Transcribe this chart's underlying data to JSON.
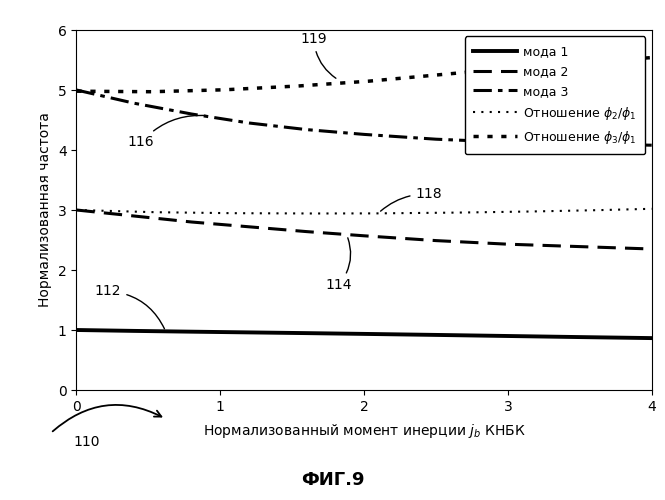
{
  "title": "",
  "xlabel": "Нормализованный момент инерции $j_b$ КНБК",
  "ylabel": "Нормализованная частота",
  "xlim": [
    0,
    4
  ],
  "ylim": [
    0,
    6
  ],
  "xticks": [
    0,
    1,
    2,
    3,
    4
  ],
  "yticks": [
    0,
    1,
    2,
    3,
    4,
    5,
    6
  ],
  "fig_caption": "ФИГ.9",
  "legend_entries": [
    "мода 1",
    "мода 2",
    "мода 3",
    "Отношение $\\phi_2/\\phi_1$",
    "Отношение $\\phi_3/\\phi_1$"
  ],
  "background_color": "#ffffff",
  "series": {
    "mode1": {
      "x": [
        0,
        0.4,
        0.8,
        1.2,
        1.6,
        2.0,
        2.5,
        3.0,
        3.5,
        4.0
      ],
      "y": [
        1.0,
        0.985,
        0.972,
        0.96,
        0.948,
        0.935,
        0.918,
        0.9,
        0.882,
        0.865
      ],
      "linestyle": "-",
      "linewidth": 2.8,
      "color": "black"
    },
    "mode2": {
      "x": [
        0,
        0.4,
        0.8,
        1.2,
        1.6,
        2.0,
        2.5,
        3.0,
        3.5,
        4.0
      ],
      "y": [
        3.0,
        2.9,
        2.8,
        2.72,
        2.64,
        2.57,
        2.49,
        2.43,
        2.39,
        2.35
      ],
      "linestyle": "--",
      "linewidth": 2.2,
      "color": "black"
    },
    "mode3": {
      "x": [
        0,
        0.4,
        0.8,
        1.2,
        1.6,
        2.0,
        2.5,
        3.0,
        3.5,
        4.0
      ],
      "y": [
        5.0,
        4.78,
        4.6,
        4.45,
        4.34,
        4.26,
        4.18,
        4.13,
        4.1,
        4.08
      ],
      "linestyle": "-.",
      "linewidth": 2.2,
      "color": "black"
    },
    "ratio2": {
      "x": [
        0,
        0.5,
        1.0,
        1.5,
        2.0,
        2.5,
        3.0,
        3.5,
        4.0
      ],
      "y": [
        3.0,
        2.965,
        2.948,
        2.942,
        2.942,
        2.952,
        2.968,
        2.99,
        3.02
      ],
      "linewidth": 1.5,
      "color": "black"
    },
    "ratio3": {
      "x": [
        0,
        0.5,
        1.0,
        1.5,
        2.0,
        2.5,
        3.0,
        3.5,
        4.0
      ],
      "y": [
        4.98,
        4.97,
        5.0,
        5.06,
        5.14,
        5.25,
        5.36,
        5.46,
        5.54
      ],
      "linewidth": 2.5,
      "color": "black"
    }
  }
}
